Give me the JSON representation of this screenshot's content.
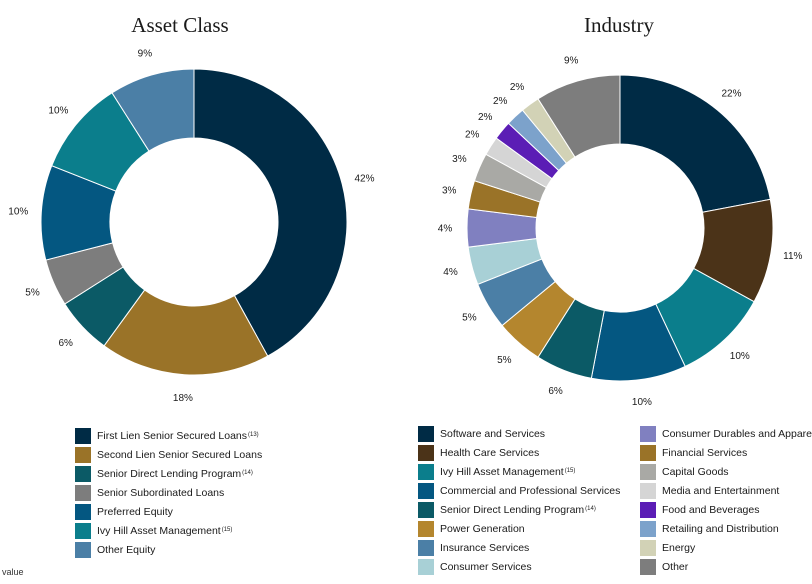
{
  "chart_data": [
    {
      "type": "pie",
      "title": "Asset Class",
      "labels": [
        "First Lien Senior Secured Loans",
        "Second Lien Senior Secured Loans",
        "Senior Direct Lending Program",
        "Senior Subordinated Loans",
        "Preferred Equity",
        "Ivy Hill Asset Management",
        "Other Equity"
      ],
      "footnotes": [
        "(13)",
        "",
        "(14)",
        "",
        "",
        "(15)",
        ""
      ],
      "values": [
        42,
        18,
        6,
        5,
        10,
        10,
        9
      ],
      "value_labels": [
        "42%",
        "18%",
        "6%",
        "5%",
        "10%",
        "10%",
        "9%"
      ],
      "colors": [
        "#002b45",
        "#9a7328",
        "#0b5a66",
        "#7d7d7d",
        "#045781",
        "#0b7e8c",
        "#4b7fa6"
      ],
      "legend": "bottom"
    },
    {
      "type": "pie",
      "title": "Industry",
      "labels": [
        "Software and Services",
        "Health Care Services",
        "Ivy Hill Asset Management",
        "Commercial and Professional Services",
        "Senior Direct Lending Program",
        "Power Generation",
        "Insurance Services",
        "Consumer Services",
        "Consumer Durables and Apparel",
        "Financial Services",
        "Capital Goods",
        "Media and Entertainment",
        "Food and Beverages",
        "Retailing and Distribution",
        "Energy",
        "Other"
      ],
      "footnotes": [
        "",
        "",
        "(15)",
        "",
        "(14)",
        "",
        "",
        "",
        "",
        "",
        "",
        "",
        "",
        "",
        "",
        ""
      ],
      "values": [
        22,
        11,
        10,
        10,
        6,
        5,
        5,
        4,
        4,
        3,
        3,
        2,
        2,
        2,
        2,
        9
      ],
      "value_labels": [
        "22%",
        "11%",
        "10%",
        "10%",
        "6%",
        "5%",
        "5%",
        "4%",
        "4%",
        "3%",
        "3%",
        "2%",
        "2%",
        "2%",
        "2%",
        "9%"
      ],
      "colors": [
        "#002b45",
        "#4b3318",
        "#0b7e8c",
        "#045781",
        "#0b5a66",
        "#b4862e",
        "#4b7fa6",
        "#a8d0d6",
        "#8080c0",
        "#9a7328",
        "#a9a9a5",
        "#d5d5d5",
        "#5b1db5",
        "#7ca2cb",
        "#d2d2b6",
        "#7d7d7d"
      ],
      "legend": "bottom"
    }
  ],
  "footer_text": "value"
}
